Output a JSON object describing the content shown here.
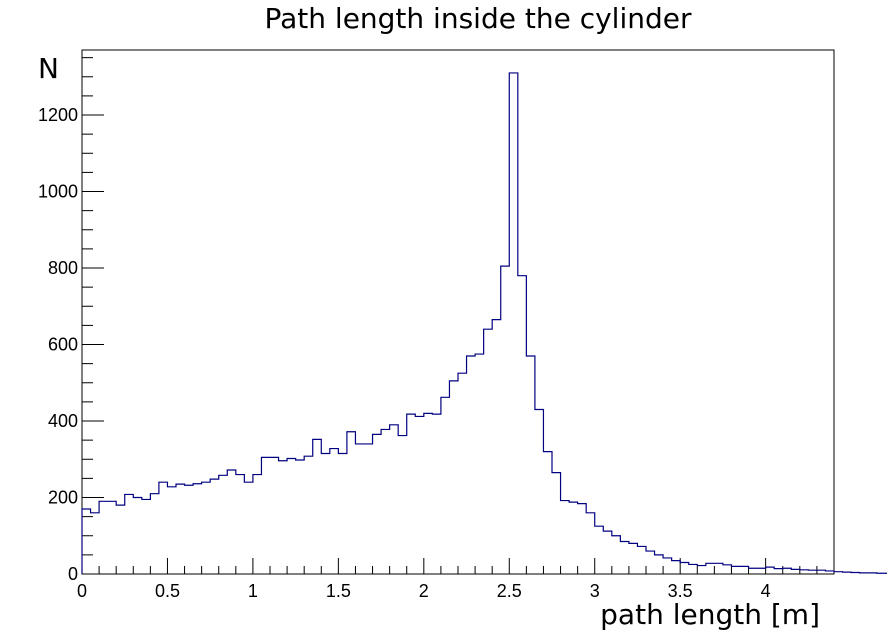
{
  "chart_data": {
    "type": "bar",
    "title": "Path length inside the cylinder",
    "xlabel": "path length [m]",
    "ylabel": "N",
    "xlim": [
      0,
      4.4
    ],
    "ylim": [
      0,
      1370
    ],
    "bin_width": 0.05,
    "bin_start": 0,
    "line_color": "#000080",
    "x_ticks": [
      "0",
      "0.5",
      "1",
      "1.5",
      "2",
      "2.5",
      "3",
      "3.5",
      "4"
    ],
    "x_tick_values": [
      0,
      0.5,
      1,
      1.5,
      2,
      2.5,
      3,
      3.5,
      4
    ],
    "y_ticks": [
      "0",
      "200",
      "400",
      "600",
      "800",
      "1000",
      "1200"
    ],
    "y_tick_values": [
      0,
      200,
      400,
      600,
      800,
      1000,
      1200
    ],
    "values": [
      170,
      160,
      190,
      190,
      180,
      208,
      200,
      195,
      210,
      240,
      228,
      235,
      232,
      236,
      240,
      248,
      258,
      272,
      260,
      240,
      260,
      305,
      305,
      296,
      302,
      298,
      308,
      352,
      315,
      328,
      315,
      372,
      340,
      340,
      365,
      378,
      390,
      362,
      418,
      412,
      420,
      418,
      462,
      505,
      525,
      570,
      575,
      640,
      665,
      805,
      1310,
      780,
      570,
      430,
      320,
      265,
      192,
      188,
      184,
      160,
      125,
      112,
      100,
      85,
      80,
      72,
      60,
      50,
      42,
      35,
      30,
      25,
      22,
      28,
      28,
      24,
      20,
      20,
      15,
      15,
      18,
      14,
      15,
      12,
      11,
      10,
      10,
      8,
      6,
      5,
      4,
      3,
      3,
      2,
      2,
      2,
      1,
      1,
      1,
      1
    ]
  }
}
